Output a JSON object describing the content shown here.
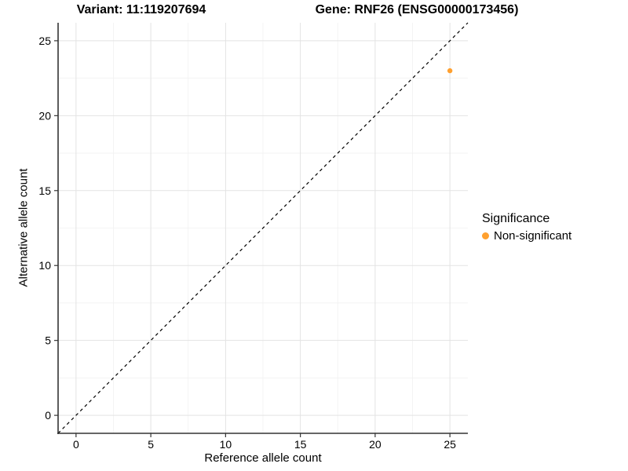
{
  "header": {
    "variant_title": "Variant: 11:119207694",
    "gene_title": "Gene: RNF26 (ENSG00000173456)"
  },
  "chart_data": {
    "type": "scatter",
    "xlabel": "Reference allele count",
    "ylabel": "Alternative allele count",
    "xlim": [
      -1.2,
      26.2
    ],
    "ylim": [
      -1.2,
      26.2
    ],
    "xticks": [
      0,
      5,
      10,
      15,
      20,
      25
    ],
    "yticks": [
      0,
      5,
      10,
      15,
      20,
      25
    ],
    "xticks_minor": [
      2.5,
      7.5,
      12.5,
      17.5,
      22.5
    ],
    "yticks_minor": [
      2.5,
      7.5,
      12.5,
      17.5,
      22.5
    ],
    "grid": true,
    "identity_line": {
      "style": "dashed",
      "color": "#000000"
    },
    "points": [
      {
        "x": 25,
        "y": 23,
        "series": "Non-significant"
      }
    ],
    "legend": {
      "title": "Significance",
      "position": "right",
      "entries": [
        {
          "label": "Non-significant",
          "color": "#FFA02F"
        }
      ]
    }
  },
  "colors": {
    "point": "#FFA02F",
    "grid_major": "#E3E3E3",
    "grid_minor": "#F1F1F1",
    "axis_line": "#333333",
    "tick_mark": "#333333",
    "text": "#000000",
    "background": "#FFFFFF"
  }
}
